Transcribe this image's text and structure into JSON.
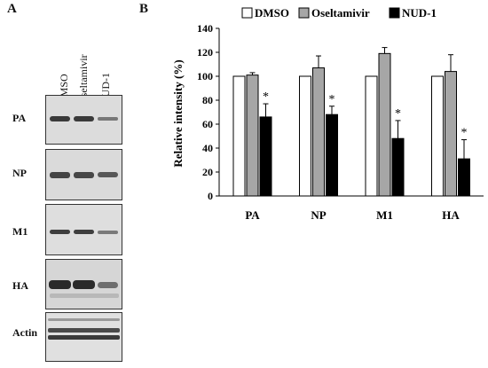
{
  "panels": {
    "a": "A",
    "b": "B"
  },
  "blot": {
    "lanes": [
      "DMSO",
      "Oseltamivir",
      "NUD-1"
    ],
    "rows": [
      {
        "label": "PA",
        "intensity": [
          0.75,
          0.75,
          0.4
        ]
      },
      {
        "label": "NP",
        "intensity": [
          0.7,
          0.68,
          0.6
        ]
      },
      {
        "label": "M1",
        "intensity": [
          0.72,
          0.72,
          0.4
        ]
      },
      {
        "label": "HA",
        "intensity": [
          0.9,
          0.9,
          0.5
        ]
      },
      {
        "label": "Actin",
        "intensity": [
          0.8,
          0.8,
          0.8
        ]
      }
    ]
  },
  "chart_data": {
    "type": "bar",
    "ylabel": "Relative intensity (%)",
    "ylim": [
      0,
      140
    ],
    "yticks": [
      0,
      20,
      40,
      60,
      80,
      100,
      120,
      140
    ],
    "categories": [
      "PA",
      "NP",
      "M1",
      "HA"
    ],
    "legend_position": "top",
    "series": [
      {
        "name": "DMSO",
        "color": "#ffffff",
        "values": [
          100,
          100,
          100,
          100
        ],
        "errors": [
          0,
          0,
          0,
          0
        ]
      },
      {
        "name": "Oseltamivir",
        "color": "#a6a6a6",
        "values": [
          101,
          107,
          119,
          104
        ],
        "errors": [
          2,
          10,
          5,
          14
        ]
      },
      {
        "name": "NUD-1",
        "color": "#000000",
        "values": [
          66,
          68,
          48,
          31
        ],
        "errors": [
          11,
          7,
          15,
          16
        ]
      }
    ],
    "significance": [
      "*",
      "*",
      "*",
      "*"
    ]
  }
}
